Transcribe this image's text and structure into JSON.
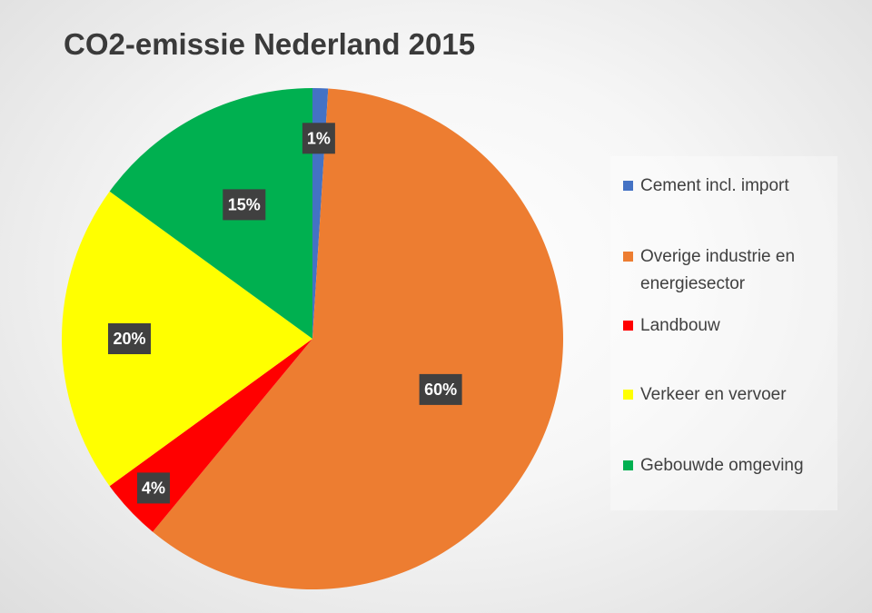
{
  "chart_data": {
    "type": "pie",
    "title": "CO2-emissie Nederland 2015",
    "categories": [
      "Cement incl. import",
      "Overige industrie en energiesector",
      "Landbouw",
      "Verkeer en vervoer",
      "Gebouwde omgeving"
    ],
    "values": [
      1,
      60,
      4,
      20,
      15
    ],
    "data_labels": [
      "1%",
      "60%",
      "4%",
      "20%",
      "15%"
    ],
    "colors": [
      "#4472c4",
      "#ed7d31",
      "#ff0000",
      "#ffff00",
      "#00b050"
    ],
    "start_angle_deg": 0,
    "direction": "clockwise",
    "legend": "right"
  }
}
